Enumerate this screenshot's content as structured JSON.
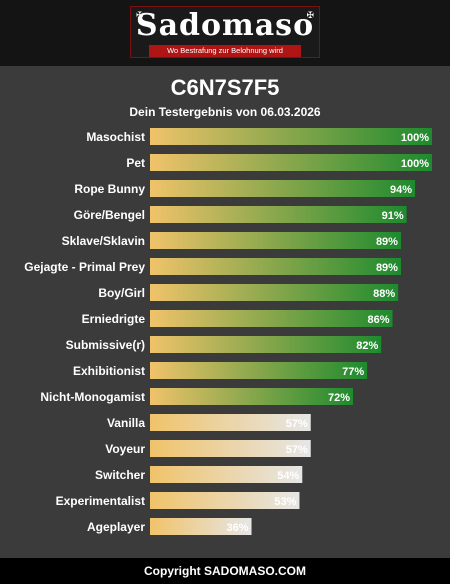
{
  "logo": {
    "wordmark": "Sadomaso",
    "tagline": "Wo Bestrafung zur Belohnung wird",
    "ornament_left": "✠",
    "ornament_right": "✠"
  },
  "header": {
    "code": "C6N7S7F5",
    "subtitle": "Dein Testergebnis von 06.03.2026"
  },
  "colors": {
    "bar_start": "#f0c36a",
    "high_end": "#1e8a2e",
    "low_end": "#e6e6e6",
    "background": "#3b3b3b"
  },
  "chart_data": {
    "type": "bar",
    "orientation": "horizontal",
    "categories": [
      "Masochist",
      "Pet",
      "Rope Bunny",
      "Göre/Bengel",
      "Sklave/Sklavin",
      "Gejagte - Primal Prey",
      "Boy/Girl",
      "Erniedrigte",
      "Submissive(r)",
      "Exhibitionist",
      "Nicht-Monogamist",
      "Vanilla",
      "Voyeur",
      "Switcher",
      "Experimentalist",
      "Ageplayer"
    ],
    "values": [
      100,
      100,
      94,
      91,
      89,
      89,
      88,
      86,
      82,
      77,
      72,
      57,
      57,
      54,
      53,
      36
    ],
    "value_labels": [
      "100%",
      "100%",
      "94%",
      "91%",
      "89%",
      "89%",
      "88%",
      "86%",
      "82%",
      "77%",
      "72%",
      "57%",
      "57%",
      "54%",
      "53%",
      "36%"
    ],
    "xlim": [
      0,
      100
    ],
    "grid": false,
    "legend": "none"
  },
  "footer": {
    "text": "Copyright SADOMASO.COM"
  }
}
